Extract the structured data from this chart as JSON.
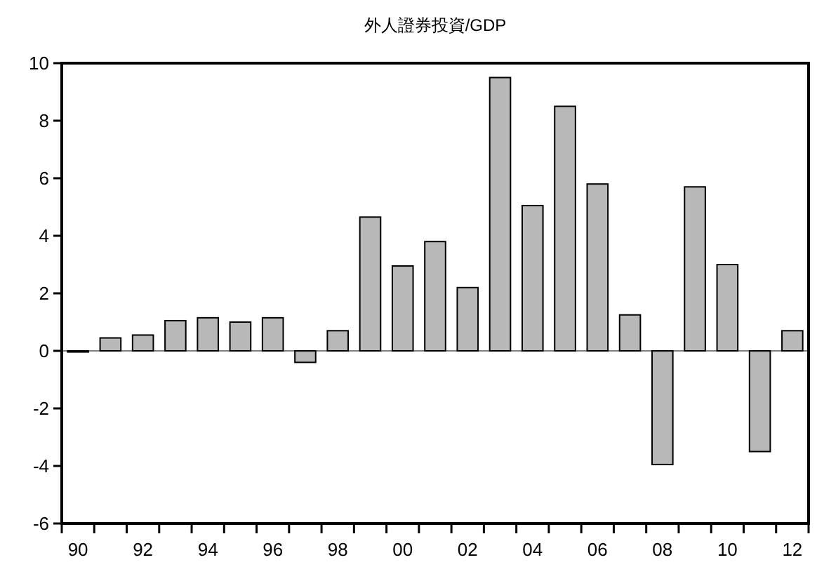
{
  "chart_data": {
    "type": "bar",
    "title": "外人證券投資/GDP",
    "categories": [
      "90",
      null,
      "92",
      null,
      "94",
      null,
      "96",
      null,
      "98",
      null,
      "00",
      null,
      "02",
      null,
      "04",
      null,
      "06",
      null,
      "08",
      null,
      "10",
      null,
      "12"
    ],
    "values": [
      0,
      0.45,
      0.55,
      1.05,
      1.15,
      1.0,
      1.15,
      -0.4,
      0.7,
      4.65,
      2.95,
      3.8,
      2.2,
      9.5,
      5.05,
      8.5,
      5.8,
      1.25,
      -3.95,
      5.7,
      3.0,
      -3.5,
      0.7
    ],
    "color": "#b8b8b8",
    "ylim": [
      -6,
      10
    ],
    "yticks": [
      -6,
      -4,
      -2,
      0,
      2,
      4,
      6,
      8,
      10
    ]
  }
}
